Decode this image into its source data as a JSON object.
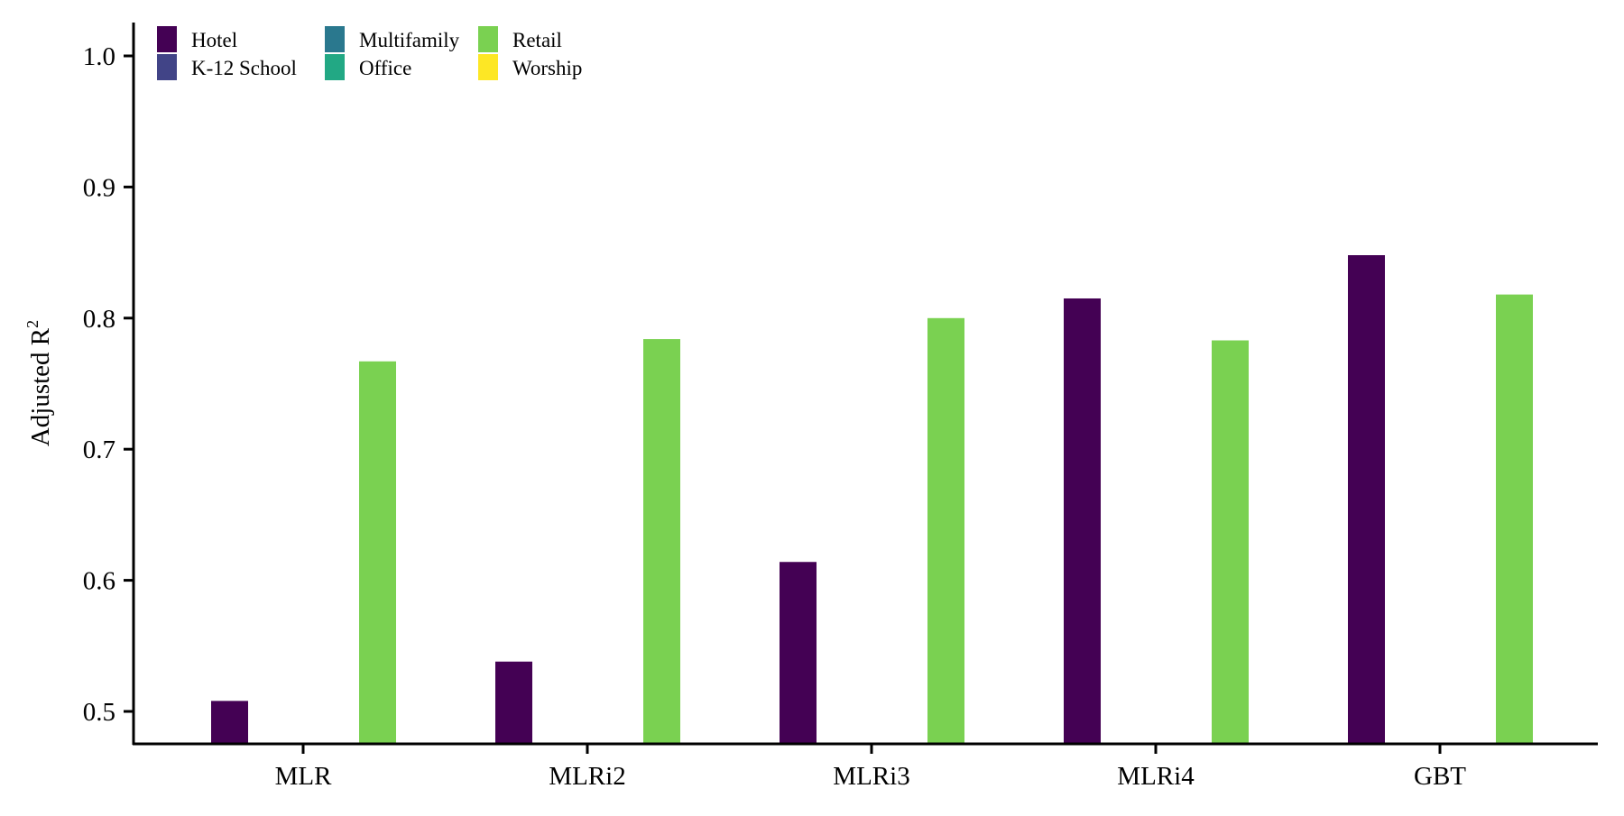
{
  "chart_data": {
    "type": "bar",
    "title": "",
    "xlabel": "",
    "ylabel": "Adjusted R",
    "ylabel_superscript": "2",
    "ylim": [
      0.475,
      1.02
    ],
    "yticks": [
      "0.5",
      "0.6",
      "0.7",
      "0.8",
      "0.9",
      "1.0"
    ],
    "ytick_values": [
      0.5,
      0.6,
      0.7,
      0.8,
      0.9,
      1.0
    ],
    "categories": [
      "MLR",
      "MLRi2",
      "MLRi3",
      "MLRi4",
      "GBT"
    ],
    "grid": false,
    "legend_position": "top-left",
    "series": [
      {
        "name": "Hotel",
        "color": "#440154",
        "values": [
          0.508,
          0.538,
          0.614,
          0.815,
          0.848
        ]
      },
      {
        "name": "K-12 School",
        "color": "#414487",
        "values": [
          null,
          null,
          null,
          null,
          null
        ]
      },
      {
        "name": "Multifamily",
        "color": "#2a788e",
        "values": [
          null,
          null,
          null,
          null,
          null
        ]
      },
      {
        "name": "Office",
        "color": "#22a884",
        "values": [
          null,
          null,
          null,
          null,
          null
        ]
      },
      {
        "name": "Retail",
        "color": "#7ad151",
        "values": [
          0.767,
          0.784,
          0.8,
          0.783,
          0.818
        ]
      },
      {
        "name": "Worship",
        "color": "#fde725",
        "values": [
          null,
          null,
          null,
          null,
          null
        ]
      }
    ]
  }
}
